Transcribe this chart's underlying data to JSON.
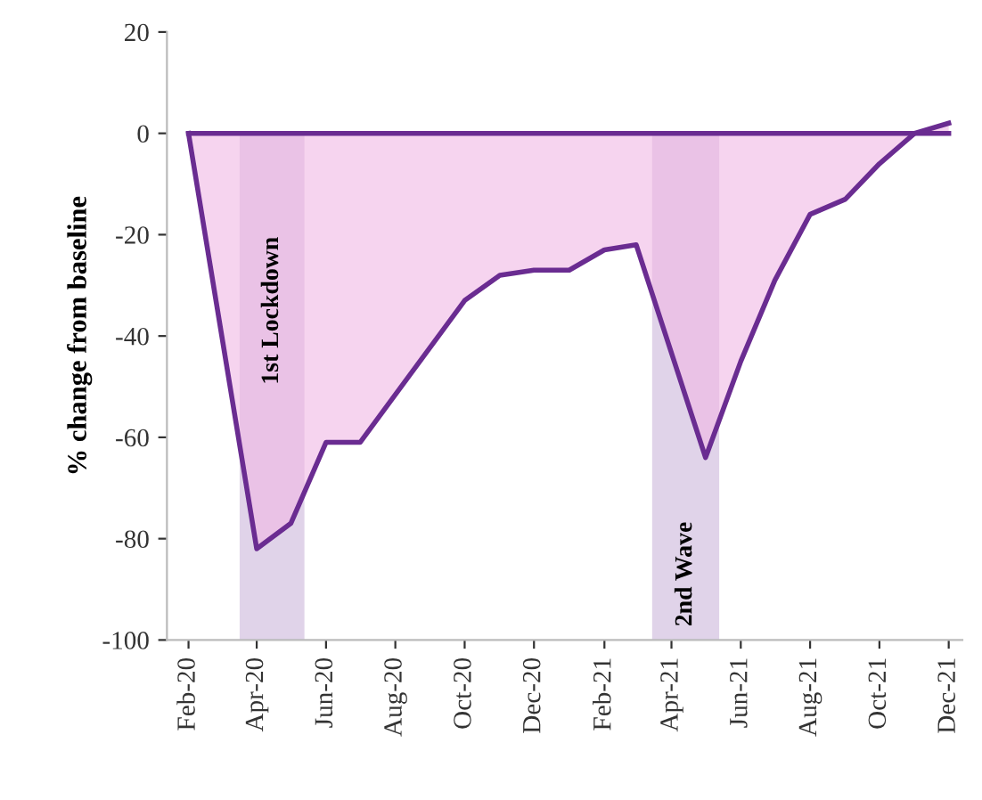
{
  "chart_data": {
    "type": "area",
    "ylabel": "% change from baseline",
    "x": [
      "2020-02-01",
      "2020-04-01",
      "2020-05-01",
      "2020-06-01",
      "2020-07-01",
      "2020-10-01",
      "2020-11-01",
      "2020-12-01",
      "2021-01-01",
      "2021-02-01",
      "2021-03-01",
      "2021-05-01",
      "2021-06-01",
      "2021-07-01",
      "2021-08-01",
      "2021-09-01",
      "2021-10-01",
      "2021-11-01",
      "2021-12-01"
    ],
    "series": [
      {
        "color": "#6a2c91",
        "values": [
          0,
          -82,
          -77,
          -61,
          -61,
          -33,
          -28,
          -27,
          -27,
          -23,
          -22,
          -64,
          -45,
          -29,
          -16,
          -13,
          -6,
          0,
          2
        ]
      }
    ],
    "xlim": [
      "2020-01-13",
      "2021-12-13"
    ],
    "xticks": [
      {
        "value": "2020-02-01",
        "label": "Feb-20"
      },
      {
        "value": "2020-04-01",
        "label": "Apr-20"
      },
      {
        "value": "2020-06-01",
        "label": "Jun-20"
      },
      {
        "value": "2020-08-01",
        "label": "Aug-20"
      },
      {
        "value": "2020-10-01",
        "label": "Oct-20"
      },
      {
        "value": "2020-12-01",
        "label": "Dec-20"
      },
      {
        "value": "2021-02-01",
        "label": "Feb-21"
      },
      {
        "value": "2021-04-01",
        "label": "Apr-21"
      },
      {
        "value": "2021-06-01",
        "label": "Jun-21"
      },
      {
        "value": "2021-08-01",
        "label": "Aug-21"
      },
      {
        "value": "2021-10-01",
        "label": "Oct-21"
      },
      {
        "value": "2021-12-01",
        "label": "Dec-21"
      }
    ],
    "ylim": [
      -100,
      20
    ],
    "yticks": [
      -100,
      -80,
      -60,
      -40,
      -20,
      0,
      20
    ],
    "bands": [
      {
        "axis": "x",
        "from": "2020-03-17",
        "to": "2020-05-13",
        "label": "1st Lockdown",
        "color": "#d8c8e4"
      },
      {
        "axis": "x",
        "from": "2021-03-15",
        "to": "2021-05-13",
        "label": "2nd Wave",
        "color": "#d8c8e4"
      }
    ],
    "ref_lines": [
      {
        "axis": "y",
        "value": 0,
        "color": "#6a2c91"
      }
    ],
    "grid": false,
    "legend": false
  }
}
